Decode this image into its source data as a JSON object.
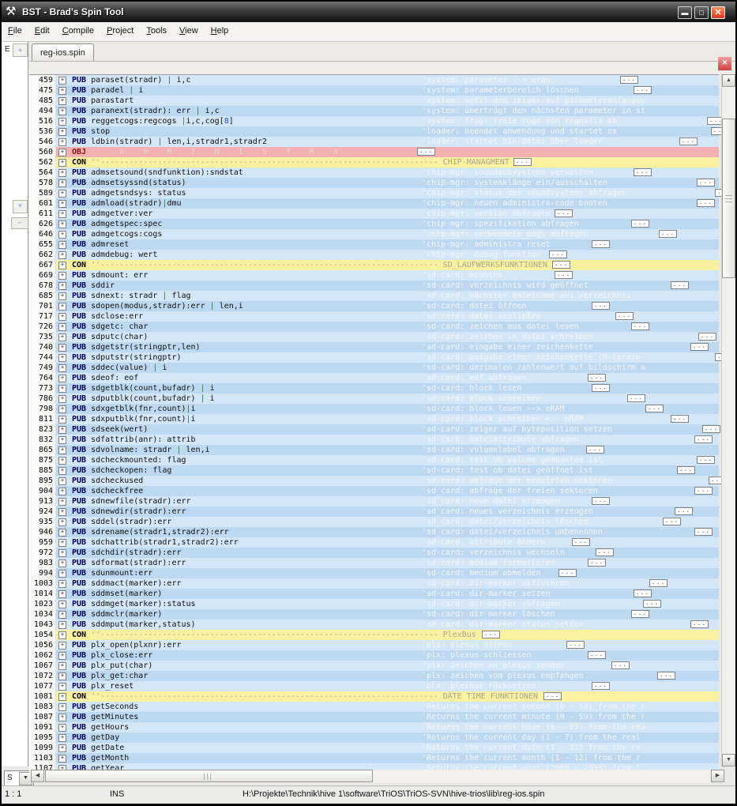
{
  "window": {
    "title": "BST - Brad's Spin Tool"
  },
  "menu": {
    "items": [
      "File",
      "Edit",
      "Compile",
      "Project",
      "Tools",
      "View",
      "Help"
    ]
  },
  "tabs": {
    "active": "reg-ios.spin"
  },
  "sidebar": {
    "label": "E",
    "combo_value": "S"
  },
  "statusbar": {
    "caret": "1 : 1",
    "mode": "INS",
    "path": "H:\\Projekte\\Technik\\hive 1\\software\\TriOS\\TriOS-SVN\\hive-trios\\lib\\reg-ios.spin"
  },
  "colors": {
    "stripe_light": "#d4e7f9",
    "stripe_dark": "#bdd9f1",
    "con_bg": "#f9f1a0",
    "obj_bg": "#f5b0b2",
    "pub_keyword": "#00005a",
    "close_button": "#d93a20"
  },
  "editor": {
    "con_prefix": "''----------------------------------------------------------------------- ",
    "rows": [
      {
        "n": 459,
        "k": "pub",
        "code": "paraset(stradr) | i,c",
        "comment": "'system: parameter --> eram",
        "bx": 697
      },
      {
        "n": 475,
        "k": "pub",
        "code": "paradel | i",
        "comment": "'system: parameterbereich löschen",
        "bx": 714
      },
      {
        "n": 485,
        "k": "pub",
        "code": "parastart",
        "comment": "'system: setzt den zeiger auf parameteranfangsp",
        "bx": null
      },
      {
        "n": 494,
        "k": "pub",
        "code": "paranext(stradr): err | i,c",
        "comment": "'system: überträgt den nächsten parameter in st",
        "bx": null
      },
      {
        "n": 516,
        "k": "pub",
        "code": "reggetcogs:regcogs |i,c,cog[8]",
        "comment": "'system: fragt freie cogs von regnatix ab",
        "bx": 807
      },
      {
        "n": 536,
        "k": "pub",
        "code": "stop",
        "comment": "'loader: beendet anwendung und startet os",
        "bx": 812
      },
      {
        "n": 546,
        "k": "pub",
        "code": "ldbin(stradr) | len,i,stradr1,stradr2",
        "comment": "'loader: startet bin-datei über loader",
        "bx": 772
      },
      {
        "n": 560,
        "k": "obj",
        "label": "''    A    D    M    I    N    I    S    T    R    A",
        "bx": 440
      },
      {
        "n": 562,
        "k": "con",
        "label": "CHIP-MANAGMENT",
        "bx": 562
      },
      {
        "n": 564,
        "k": "pub",
        "code": "admsetsound(sndfunktion):sndstat",
        "comment": "'chip-mgr: soundsubsysteme verwalten",
        "bx": 714
      },
      {
        "n": 578,
        "k": "pub",
        "code": "admsetsyssnd(status)",
        "comment": "'chip-mgr: systemklänge ein/ausschalten",
        "bx": 794
      },
      {
        "n": 589,
        "k": "pub",
        "code": "admgetsndsys: status",
        "comment": "'chip-mgr: status des soundsystems abfragen",
        "bx": 817
      },
      {
        "n": 601,
        "k": "pub",
        "code": "admload(stradr)|dmu",
        "comment": "'chip-mgr: neuen administra-code booten",
        "bx": 794
      },
      {
        "n": 611,
        "k": "pub",
        "code": "admgetver:ver",
        "comment": "'chip-mgr: version abfragen",
        "bx": 614
      },
      {
        "n": 626,
        "k": "pub",
        "code": "admgetspec:spec",
        "comment": "'chip-mgr: spezifikation abfragen",
        "bx": 711
      },
      {
        "n": 646,
        "k": "pub",
        "code": "admgetcogs:cogs",
        "comment": "'chip-mgr: verwendete cogs abfragen",
        "bx": 746
      },
      {
        "n": 655,
        "k": "pub",
        "code": "admreset",
        "comment": "'chip-mgr: administra reset",
        "bx": 661
      },
      {
        "n": 662,
        "k": "pub",
        "code": "admdebug: wert",
        "comment": "'chip-mgr: debug-funktion",
        "bx": 607
      },
      {
        "n": 667,
        "k": "con",
        "label": "SD_LAUFWERKSFUNKTIONEN",
        "bx": 611
      },
      {
        "n": 669,
        "k": "pub",
        "code": "sdmount: err",
        "comment": "'sd-card: mounten",
        "bx": 614
      },
      {
        "n": 678,
        "k": "pub",
        "code": "sddir",
        "comment": "'sd-card: verzeichnis wird geöffnet",
        "bx": 761
      },
      {
        "n": 685,
        "k": "pub",
        "code": "sdnext: stradr | flag",
        "comment": "'sd-card: nächster dateiname aus verzeichnis",
        "bx": null
      },
      {
        "n": 701,
        "k": "pub",
        "code": "sdopen(modus,stradr):err | len,i",
        "comment": "'sd-card: datei öffnen",
        "bx": 661
      },
      {
        "n": 717,
        "k": "pub",
        "code": "sdclose:err",
        "comment": "'sd-card: datei schließen",
        "bx": 691
      },
      {
        "n": 726,
        "k": "pub",
        "code": "sdgetc: char",
        "comment": "'sd-card: zeichen aus datei lesen",
        "bx": 711
      },
      {
        "n": 735,
        "k": "pub",
        "code": "sdputc(char)",
        "comment": "'sd-card: zeichen in datei schreiben",
        "bx": 796
      },
      {
        "n": 740,
        "k": "pub",
        "code": "sdgetstr(stringptr,len)",
        "comment": "'sd-card: eingabe einer zeichenkette",
        "bx": 786
      },
      {
        "n": 744,
        "k": "pub",
        "code": "sdputstr(stringptr)",
        "comment": "'sd-card: ausgabe einer zeichenkette (0-termin",
        "bx": 817
      },
      {
        "n": 749,
        "k": "pub",
        "code": "sddec(value) | i",
        "comment": "'sd-card: dezimalen zahlenwert auf bildschirm a",
        "bx": null
      },
      {
        "n": 764,
        "k": "pub",
        "code": "sdeof: eof",
        "comment": "'sd-card: eof abfragen",
        "bx": 656
      },
      {
        "n": 773,
        "k": "pub",
        "code": "sdgetblk(count,bufadr) | i",
        "comment": "'sd-card: block lesen",
        "bx": 661
      },
      {
        "n": 786,
        "k": "pub",
        "code": "sdputblk(count,bufadr) | i",
        "comment": "'sd-card: block schreiben",
        "bx": 706
      },
      {
        "n": 798,
        "k": "pub",
        "code": "sdxgetblk(fnr,count)|i",
        "comment": "'sd-card: block lesen --> eRAM",
        "bx": 729
      },
      {
        "n": 811,
        "k": "pub",
        "code": "sdxputblk(fnr,count)|i",
        "comment": "'sd-card: block schreiben <-- eRAM",
        "bx": 761
      },
      {
        "n": 823,
        "k": "pub",
        "code": "sdseek(wert)",
        "comment": "'sd-card: zeiger auf byteposition setzen",
        "bx": 801
      },
      {
        "n": 832,
        "k": "pub",
        "code": "sdfattrib(anr): attrib",
        "comment": "'sd-card: dateiattribute abfragen",
        "bx": 791
      },
      {
        "n": 865,
        "k": "pub",
        "code": "sdvolname: stradr | len,i",
        "comment": "'sd-card: volumelabel abfragen",
        "bx": 654
      },
      {
        "n": 875,
        "k": "pub",
        "code": "sdcheckmounted: flag",
        "comment": "'sd-card: test ob volume gemounted ist",
        "bx": 794
      },
      {
        "n": 885,
        "k": "pub",
        "code": "sdcheckopen: flag",
        "comment": "'sd-card: test ob datei geöffnet ist",
        "bx": 769
      },
      {
        "n": 895,
        "k": "pub",
        "code": "sdcheckused",
        "comment": "'sd-card: abfrage der benutzten sektoren",
        "bx": 809
      },
      {
        "n": 904,
        "k": "pub",
        "code": "sdcheckfree",
        "comment": "'sd_card: abfrage der freien sektoren",
        "bx": 791
      },
      {
        "n": 913,
        "k": "pub",
        "code": "sdnewfile(stradr):err",
        "comment": "'sd_card: neue datei erzeugen",
        "bx": 661
      },
      {
        "n": 924,
        "k": "pub",
        "code": "sdnewdir(stradr):err",
        "comment": "'sd_card: neues verzeichnis erzeugen",
        "bx": 766
      },
      {
        "n": 935,
        "k": "pub",
        "code": "sddel(stradr):err",
        "comment": "'sd_card: datei/verzeichnis löschen",
        "bx": 751
      },
      {
        "n": 946,
        "k": "pub",
        "code": "sdrename(stradr1,stradr2):err",
        "comment": "'sd_card: datei/verzeichnis umbenennen",
        "bx": 791
      },
      {
        "n": 959,
        "k": "pub",
        "code": "sdchattrib(stradr1,stradr2):err",
        "comment": "'sd-card: attribute ändern",
        "bx": 636
      },
      {
        "n": 972,
        "k": "pub",
        "code": "sdchdir(stradr):err",
        "comment": "'sd-card: verzeichnis wechseln",
        "bx": 666
      },
      {
        "n": 983,
        "k": "pub",
        "code": "sdformat(stradr):err",
        "comment": "'sd-card: medium formatieren",
        "bx": 656
      },
      {
        "n": 994,
        "k": "pub",
        "code": "sdunmount:err",
        "comment": "'sd-card: medium abmelden",
        "bx": 619
      },
      {
        "n": 1003,
        "k": "pub",
        "code": "sddmact(marker):err",
        "comment": "'sd-card: dir-marker aktivieren",
        "bx": 734
      },
      {
        "n": 1014,
        "k": "pub",
        "code": "sddmset(marker)",
        "comment": "'sd-card: dir-marker setzen",
        "bx": 714
      },
      {
        "n": 1023,
        "k": "pub",
        "code": "sddmget(marker):status",
        "comment": "'sd-card: dir-marker abfragen",
        "bx": 726
      },
      {
        "n": 1034,
        "k": "pub",
        "code": "sddmclr(marker)",
        "comment": "'sd-card: dir-marker löschen",
        "bx": 711
      },
      {
        "n": 1043,
        "k": "pub",
        "code": "sddmput(marker,status)",
        "comment": "'sd-card: dir-marker status setzen",
        "bx": 786
      },
      {
        "n": 1054,
        "k": "con",
        "label": "PlexBus",
        "bx": 522
      },
      {
        "n": 1056,
        "k": "pub",
        "code": "plx_open(plxnr):err",
        "comment": "'plx: plexus öffnen",
        "bx": 629
      },
      {
        "n": 1062,
        "k": "pub",
        "code": "plx_close:err",
        "comment": "'plx: plexus schliessen",
        "bx": 656
      },
      {
        "n": 1067,
        "k": "pub",
        "code": "plx_put(char)",
        "comment": "'plx: zeichen an plexus senden",
        "bx": 686
      },
      {
        "n": 1072,
        "k": "pub",
        "code": "plx_get:char",
        "comment": "'plx: zeichen vom plexus empfangen",
        "bx": 744
      },
      {
        "n": 1077,
        "k": "pub",
        "code": "plx_reset",
        "comment": "'plx: plexbus rücksetzen",
        "bx": 661
      },
      {
        "n": 1081,
        "k": "con",
        "label": "DATE TIME FUNKTIONEN",
        "bx": 600
      },
      {
        "n": 1083,
        "k": "pub",
        "code": "getSeconds",
        "comment": "'Returns the current second (0 - 59) from the r",
        "bx": null
      },
      {
        "n": 1087,
        "k": "pub",
        "code": "getMinutes",
        "comment": "'Returns the current minute (0 - 59) from the r",
        "bx": null
      },
      {
        "n": 1091,
        "k": "pub",
        "code": "getHours",
        "comment": "'Returns the current hour (0 - 23) from the rea",
        "bx": null
      },
      {
        "n": 1095,
        "k": "pub",
        "code": "getDay",
        "comment": "'Returns the current day (1 - 7) from the real",
        "bx": null
      },
      {
        "n": 1099,
        "k": "pub",
        "code": "getDate",
        "comment": "'Returns the current date (1 - 31) from the re",
        "bx": null
      },
      {
        "n": 1103,
        "k": "pub",
        "code": "getMonth",
        "comment": "'Returns the current month (1 - 12) from the r",
        "bx": null
      },
      {
        "n": 1107,
        "k": "pub",
        "code": "getYear",
        "comment": "'Returns the current year (2000 - 2099) from t",
        "bx": null
      }
    ]
  }
}
